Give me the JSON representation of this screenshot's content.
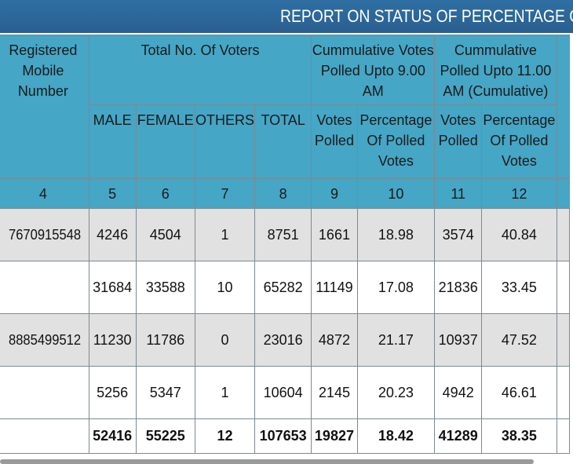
{
  "report_title": "REPORT ON STATUS OF PERCENTAGE OF I",
  "headers": {
    "registered_mobile": "Registered Mobile Number",
    "total_voters": "Total No. Of Voters",
    "cum_9": "Cummulative Votes Polled Upto 9.00 AM",
    "cum_11": "Cummulative Polled Upto 11.00 AM (Cumulative)",
    "male": "MALE",
    "female": "FEMALE",
    "others": "OTHERS",
    "total": "TOTAL",
    "votes_polled_9": "Votes Polled",
    "pct_9": "Percentage Of Polled Votes",
    "votes_polled_11": "Votes Polled",
    "pct_11": "Percentage Of Polled Votes"
  },
  "column_numbers": [
    "4",
    "5",
    "6",
    "7",
    "8",
    "9",
    "10",
    "11",
    "12"
  ],
  "rows": [
    {
      "mobile": "7670915548",
      "male": "4246",
      "female": "4504",
      "others": "1",
      "total": "8751",
      "vp9": "1661",
      "pct9": "18.98",
      "vp11": "3574",
      "pct11": "40.84"
    },
    {
      "mobile": "",
      "male": "31684",
      "female": "33588",
      "others": "10",
      "total": "65282",
      "vp9": "11149",
      "pct9": "17.08",
      "vp11": "21836",
      "pct11": "33.45"
    },
    {
      "mobile": "8885499512",
      "male": "11230",
      "female": "11786",
      "others": "0",
      "total": "23016",
      "vp9": "4872",
      "pct9": "21.17",
      "vp11": "10937",
      "pct11": "47.52"
    },
    {
      "mobile": "",
      "male": "5256",
      "female": "5347",
      "others": "1",
      "total": "10604",
      "vp9": "2145",
      "pct9": "20.23",
      "vp11": "4942",
      "pct11": "46.61"
    }
  ],
  "totals": {
    "mobile": "",
    "male": "52416",
    "female": "55225",
    "others": "12",
    "total": "107653",
    "vp9": "19827",
    "pct9": "18.42",
    "vp11": "41289",
    "pct11": "38.35"
  }
}
